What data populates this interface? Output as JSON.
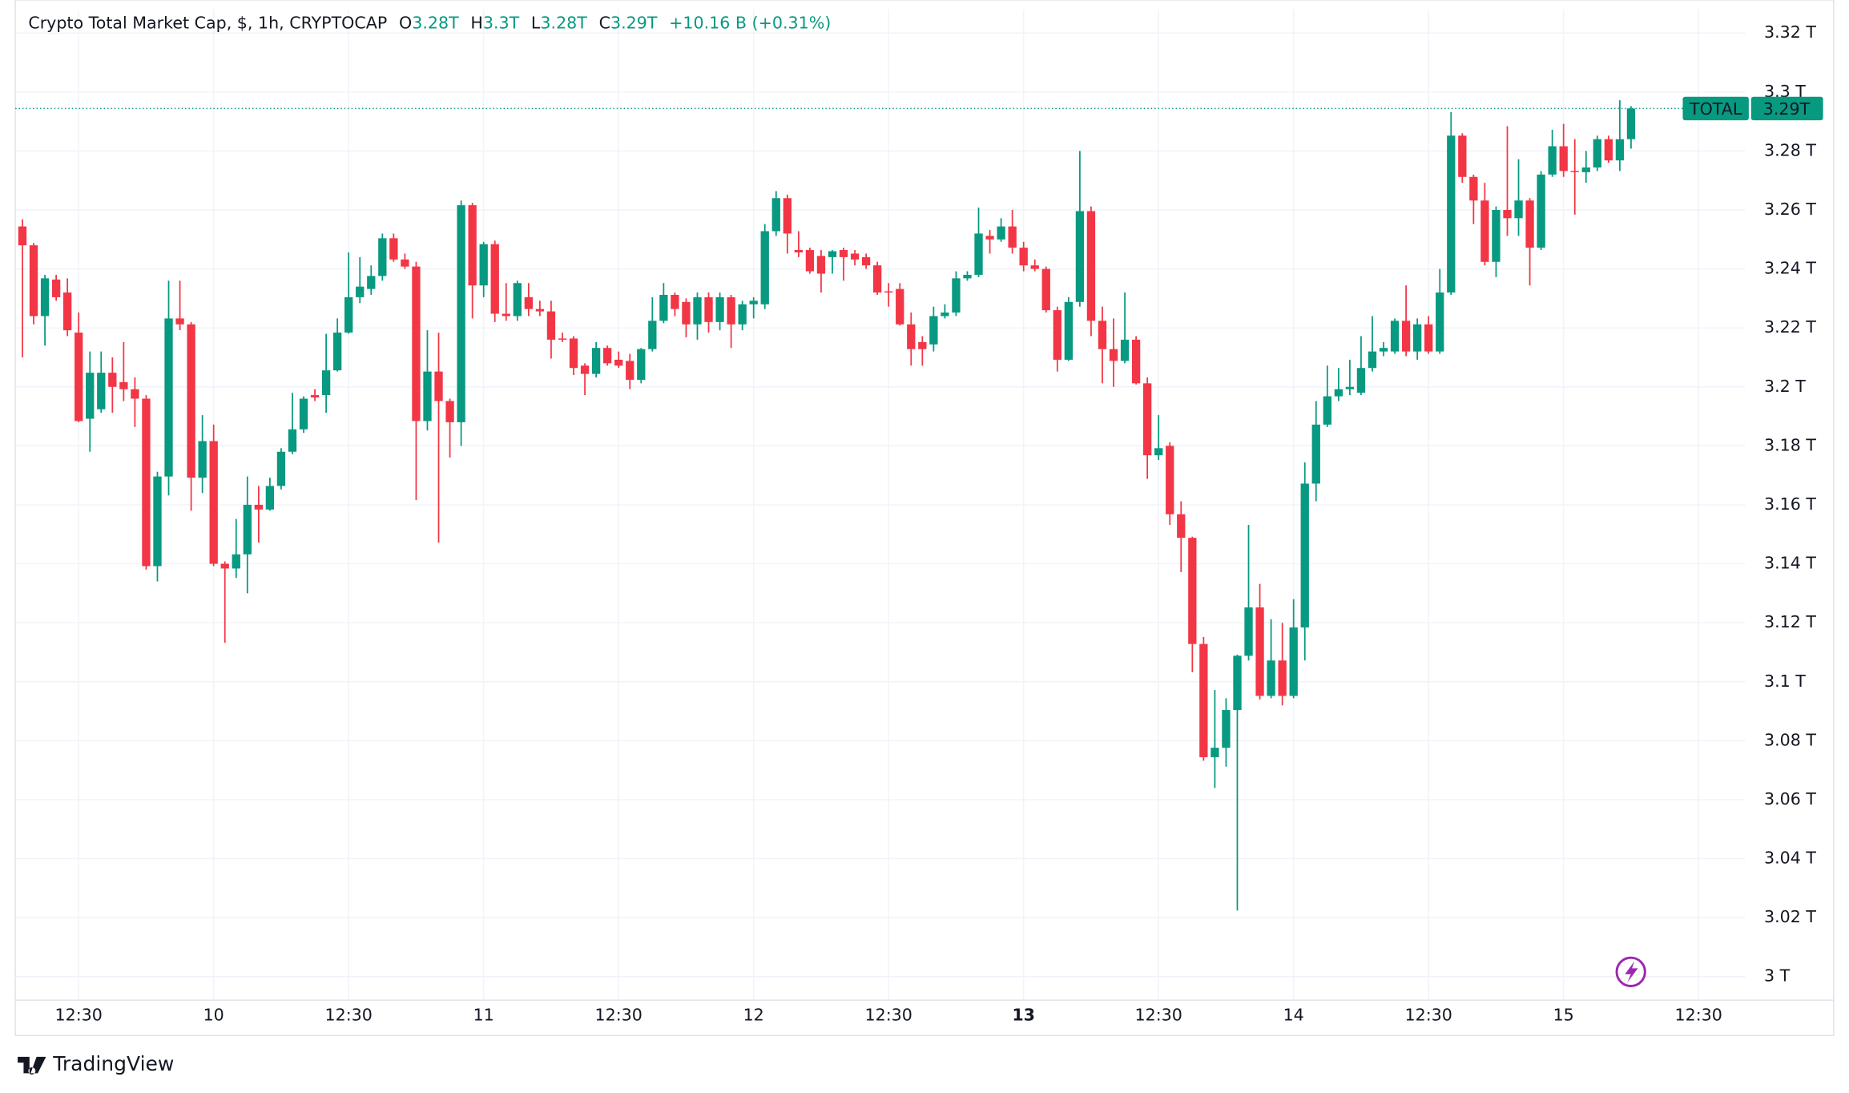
{
  "chart_data": {
    "type": "candlestick",
    "title": "Crypto Total Market Cap, $, 1h, CRYPTOCAP",
    "header": {
      "o_label": "O",
      "o": "3.28T",
      "h_label": "H",
      "h": "3.3T",
      "l_label": "L",
      "l": "3.28T",
      "c_label": "C",
      "c": "3.29T",
      "change": "+10.16 B (+0.31%)"
    },
    "up_color": "#089981",
    "down_color": "#f23645",
    "series": [
      {
        "name": "TOTAL",
        "open": [
          3.2544,
          3.248,
          3.224,
          3.2364,
          3.232,
          3.2184,
          3.1892,
          3.1924,
          3.2048,
          3.2016,
          3.1992,
          3.196,
          3.1392,
          3.1696,
          3.2232,
          3.2212,
          3.1692,
          3.1816,
          3.14,
          3.1384,
          3.1432,
          3.16,
          3.1584,
          3.1664,
          3.178,
          3.1856,
          3.1972,
          3.1972,
          3.2056,
          3.2184,
          3.2304,
          3.2332,
          3.2376,
          3.2504,
          3.2432,
          3.2408,
          3.1884,
          3.2052,
          3.1952,
          3.188,
          3.2616,
          3.2344,
          3.2484,
          3.2248,
          3.224,
          3.2304,
          3.2264,
          3.2256,
          3.2164,
          3.2164,
          3.2072,
          3.2044,
          3.2132,
          3.2092,
          3.2088,
          3.2024,
          3.2128,
          3.2224,
          3.2312,
          3.2288,
          3.2212,
          3.2304,
          3.222,
          3.2304,
          3.2212,
          3.228,
          3.228,
          3.2528,
          3.264,
          3.2464,
          3.2464,
          3.2444,
          3.244,
          3.2464,
          3.2452,
          3.244,
          3.2412,
          3.2324,
          3.2332,
          3.2212,
          3.2152,
          3.2144,
          3.224,
          3.2252,
          3.2368,
          3.238,
          3.2512,
          3.25,
          3.2544,
          3.2472,
          3.2412,
          3.24,
          3.226,
          3.2092,
          3.2288,
          3.2596,
          3.2224,
          3.2128,
          3.2088,
          3.216,
          3.2012,
          3.1768,
          3.18,
          3.1568,
          3.1488,
          3.1128,
          3.0744,
          3.0776,
          3.0904,
          3.1088,
          3.1252,
          3.0952,
          3.1072,
          3.0952,
          3.1184,
          3.1672,
          3.1872,
          3.1968,
          3.1992,
          3.198,
          3.2064,
          3.212,
          3.212,
          3.2224,
          3.212,
          3.2212,
          3.212,
          3.232,
          3.2852,
          3.2712,
          3.2632,
          3.2424,
          3.26,
          3.2572,
          3.2632,
          3.2472,
          3.272,
          3.2816,
          3.2732,
          3.2728,
          3.2744,
          3.284,
          3.2768,
          3.284
        ],
        "high": [
          3.2568,
          3.2488,
          3.238,
          3.238,
          3.2368,
          3.2252,
          3.212,
          3.212,
          3.21,
          3.2152,
          3.2032,
          3.1972,
          3.1712,
          3.236,
          3.236,
          3.222,
          3.1904,
          3.1872,
          3.1408,
          3.1552,
          3.1696,
          3.1664,
          3.1692,
          3.1792,
          3.198,
          3.1968,
          3.1992,
          3.218,
          3.2232,
          3.2456,
          3.244,
          3.2412,
          3.252,
          3.252,
          3.2452,
          3.2424,
          3.2192,
          3.2184,
          3.196,
          3.2632,
          3.2624,
          3.2492,
          3.2496,
          3.2352,
          3.236,
          3.2352,
          3.2292,
          3.2292,
          3.2184,
          3.2172,
          3.208,
          3.2152,
          3.214,
          3.212,
          3.2112,
          3.2132,
          3.2304,
          3.2352,
          3.232,
          3.23,
          3.232,
          3.232,
          3.232,
          3.2312,
          3.2292,
          3.2304,
          3.2552,
          3.2664,
          3.2652,
          3.2528,
          3.2472,
          3.2464,
          3.2464,
          3.2472,
          3.2464,
          3.2452,
          3.2424,
          3.2352,
          3.2352,
          3.2252,
          3.2172,
          3.2272,
          3.228,
          3.2392,
          3.2392,
          3.2608,
          3.2532,
          3.2572,
          3.26,
          3.2492,
          3.2432,
          3.2408,
          3.2272,
          3.2304,
          3.28,
          3.2612,
          3.2272,
          3.2232,
          3.232,
          3.2172,
          3.2032,
          3.1904,
          3.1812,
          3.1612,
          3.1492,
          3.1152,
          3.0972,
          3.0944,
          3.1092,
          3.1532,
          3.1332,
          3.1212,
          3.12,
          3.128,
          3.1744,
          3.1952,
          3.2072,
          3.2064,
          3.2092,
          3.2172,
          3.224,
          3.2152,
          3.2232,
          3.2344,
          3.2232,
          3.224,
          3.24,
          3.2932,
          3.286,
          3.272,
          3.2692,
          3.2612,
          3.2884,
          3.2772,
          3.264,
          3.2732,
          3.2872,
          3.2892,
          3.284,
          3.28,
          3.2852,
          3.2852,
          3.2972,
          3.2952
        ],
        "low": [
          3.21,
          3.2212,
          3.214,
          3.2292,
          3.2172,
          3.188,
          3.178,
          3.1912,
          3.1912,
          3.1952,
          3.1864,
          3.138,
          3.134,
          3.1632,
          3.2192,
          3.158,
          3.164,
          3.1392,
          3.1132,
          3.1352,
          3.13,
          3.1472,
          3.158,
          3.1652,
          3.1772,
          3.1844,
          3.1952,
          3.1912,
          3.2052,
          3.218,
          3.2284,
          3.2312,
          3.236,
          3.2424,
          3.24,
          3.1616,
          3.1852,
          3.1472,
          3.176,
          3.18,
          3.2232,
          3.2304,
          3.222,
          3.2224,
          3.2224,
          3.224,
          3.224,
          3.2096,
          3.2152,
          3.204,
          3.1972,
          3.2032,
          3.2072,
          3.2064,
          3.1992,
          3.2012,
          3.212,
          3.2216,
          3.224,
          3.2168,
          3.216,
          3.2184,
          3.2192,
          3.2132,
          3.2192,
          3.2232,
          3.2264,
          3.2512,
          3.2452,
          3.244,
          3.2384,
          3.232,
          3.2384,
          3.236,
          3.2412,
          3.24,
          3.2312,
          3.2272,
          3.2208,
          3.2072,
          3.2072,
          3.212,
          3.2232,
          3.224,
          3.236,
          3.2372,
          3.2452,
          3.2492,
          3.2452,
          3.2392,
          3.2392,
          3.2252,
          3.2052,
          3.2088,
          3.2272,
          3.2172,
          3.2012,
          3.2,
          3.208,
          3.2008,
          3.1688,
          3.1752,
          3.1532,
          3.1372,
          3.1032,
          3.0732,
          3.064,
          3.0712,
          3.0224,
          3.1072,
          3.094,
          3.0944,
          3.092,
          3.0944,
          3.1072,
          3.1612,
          3.1864,
          3.1952,
          3.1972,
          3.1972,
          3.2052,
          3.2104,
          3.2112,
          3.2104,
          3.2092,
          3.2112,
          3.2112,
          3.2312,
          3.2692,
          3.2552,
          3.2412,
          3.2372,
          3.2512,
          3.2512,
          3.2344,
          3.2464,
          3.2712,
          3.2712,
          3.2584,
          3.2692,
          3.2732,
          3.276,
          3.2732,
          3.2808
        ],
        "close": [
          3.248,
          3.224,
          3.2368,
          3.2304,
          3.2192,
          3.1884,
          3.2048,
          3.2048,
          3.2,
          3.1992,
          3.196,
          3.1392,
          3.1696,
          3.2232,
          3.2212,
          3.1692,
          3.1816,
          3.14,
          3.1384,
          3.1432,
          3.16,
          3.1584,
          3.1664,
          3.178,
          3.1856,
          3.196,
          3.1964,
          3.2056,
          3.2184,
          3.2304,
          3.234,
          3.2376,
          3.2504,
          3.2432,
          3.2408,
          3.1884,
          3.2052,
          3.1952,
          3.188,
          3.2616,
          3.2344,
          3.2484,
          3.2248,
          3.224,
          3.2352,
          3.2264,
          3.2256,
          3.216,
          3.216,
          3.2064,
          3.2044,
          3.2132,
          3.208,
          3.2072,
          3.2024,
          3.2128,
          3.2224,
          3.2312,
          3.2264,
          3.2212,
          3.2304,
          3.222,
          3.2304,
          3.2212,
          3.228,
          3.2292,
          3.2528,
          3.264,
          3.252,
          3.2456,
          3.2392,
          3.2384,
          3.246,
          3.244,
          3.2432,
          3.2412,
          3.232,
          3.232,
          3.2212,
          3.2128,
          3.2128,
          3.224,
          3.2252,
          3.2368,
          3.238,
          3.252,
          3.25,
          3.2544,
          3.2472,
          3.2412,
          3.24,
          3.226,
          3.2092,
          3.2288,
          3.2596,
          3.2224,
          3.2128,
          3.2088,
          3.216,
          3.2012,
          3.1768,
          3.1792,
          3.1568,
          3.1488,
          3.1128,
          3.0744,
          3.0776,
          3.0904,
          3.1088,
          3.1252,
          3.0952,
          3.1072,
          3.0952,
          3.1184,
          3.1672,
          3.1872,
          3.1968,
          3.1992,
          3.2,
          3.2064,
          3.212,
          3.2132,
          3.2224,
          3.212,
          3.2212,
          3.212,
          3.232,
          3.2852,
          3.2712,
          3.2632,
          3.2424,
          3.26,
          3.2572,
          3.2632,
          3.2472,
          3.272,
          3.2816,
          3.2732,
          3.2728,
          3.2744,
          3.284,
          3.2768,
          3.284,
          3.2944
        ]
      }
    ],
    "last_price": {
      "value": 3.2944,
      "label": "3.29T"
    },
    "xlim": [
      -0.63,
      153.15
    ],
    "xticks": [
      {
        "value": 5,
        "label": "12:30"
      },
      {
        "value": 17,
        "label": "10"
      },
      {
        "value": 29,
        "label": "12:30"
      },
      {
        "value": 41,
        "label": "11"
      },
      {
        "value": 53,
        "label": "12:30"
      },
      {
        "value": 65,
        "label": "12"
      },
      {
        "value": 77,
        "label": "12:30"
      },
      {
        "value": 89,
        "label": "13"
      },
      {
        "value": 101,
        "label": "12:30"
      },
      {
        "value": 113,
        "label": "14"
      },
      {
        "value": 125,
        "label": "12:30"
      },
      {
        "value": 137,
        "label": "15"
      },
      {
        "value": 149,
        "label": "12:30"
      }
    ],
    "ylim": [
      2.992,
      3.328
    ],
    "yticks": [
      {
        "value": 3,
        "label": "3 T"
      },
      {
        "value": 3.02,
        "label": "3.02 T"
      },
      {
        "value": 3.04,
        "label": "3.04 T"
      },
      {
        "value": 3.06,
        "label": "3.06 T"
      },
      {
        "value": 3.08,
        "label": "3.08 T"
      },
      {
        "value": 3.1,
        "label": "3.1 T"
      },
      {
        "value": 3.12,
        "label": "3.12 T"
      },
      {
        "value": 3.14,
        "label": "3.14 T"
      },
      {
        "value": 3.16,
        "label": "3.16 T"
      },
      {
        "value": 3.18,
        "label": "3.18 T"
      },
      {
        "value": 3.2,
        "label": "3.2 T"
      },
      {
        "value": 3.22,
        "label": "3.22 T"
      },
      {
        "value": 3.24,
        "label": "3.24 T"
      },
      {
        "value": 3.26,
        "label": "3.26 T"
      },
      {
        "value": 3.28,
        "label": "3.28 T"
      },
      {
        "value": 3.3,
        "label": "3.3 T"
      },
      {
        "value": 3.32,
        "label": "3.32 T"
      }
    ],
    "grid": true,
    "watermark": "TradingView"
  }
}
